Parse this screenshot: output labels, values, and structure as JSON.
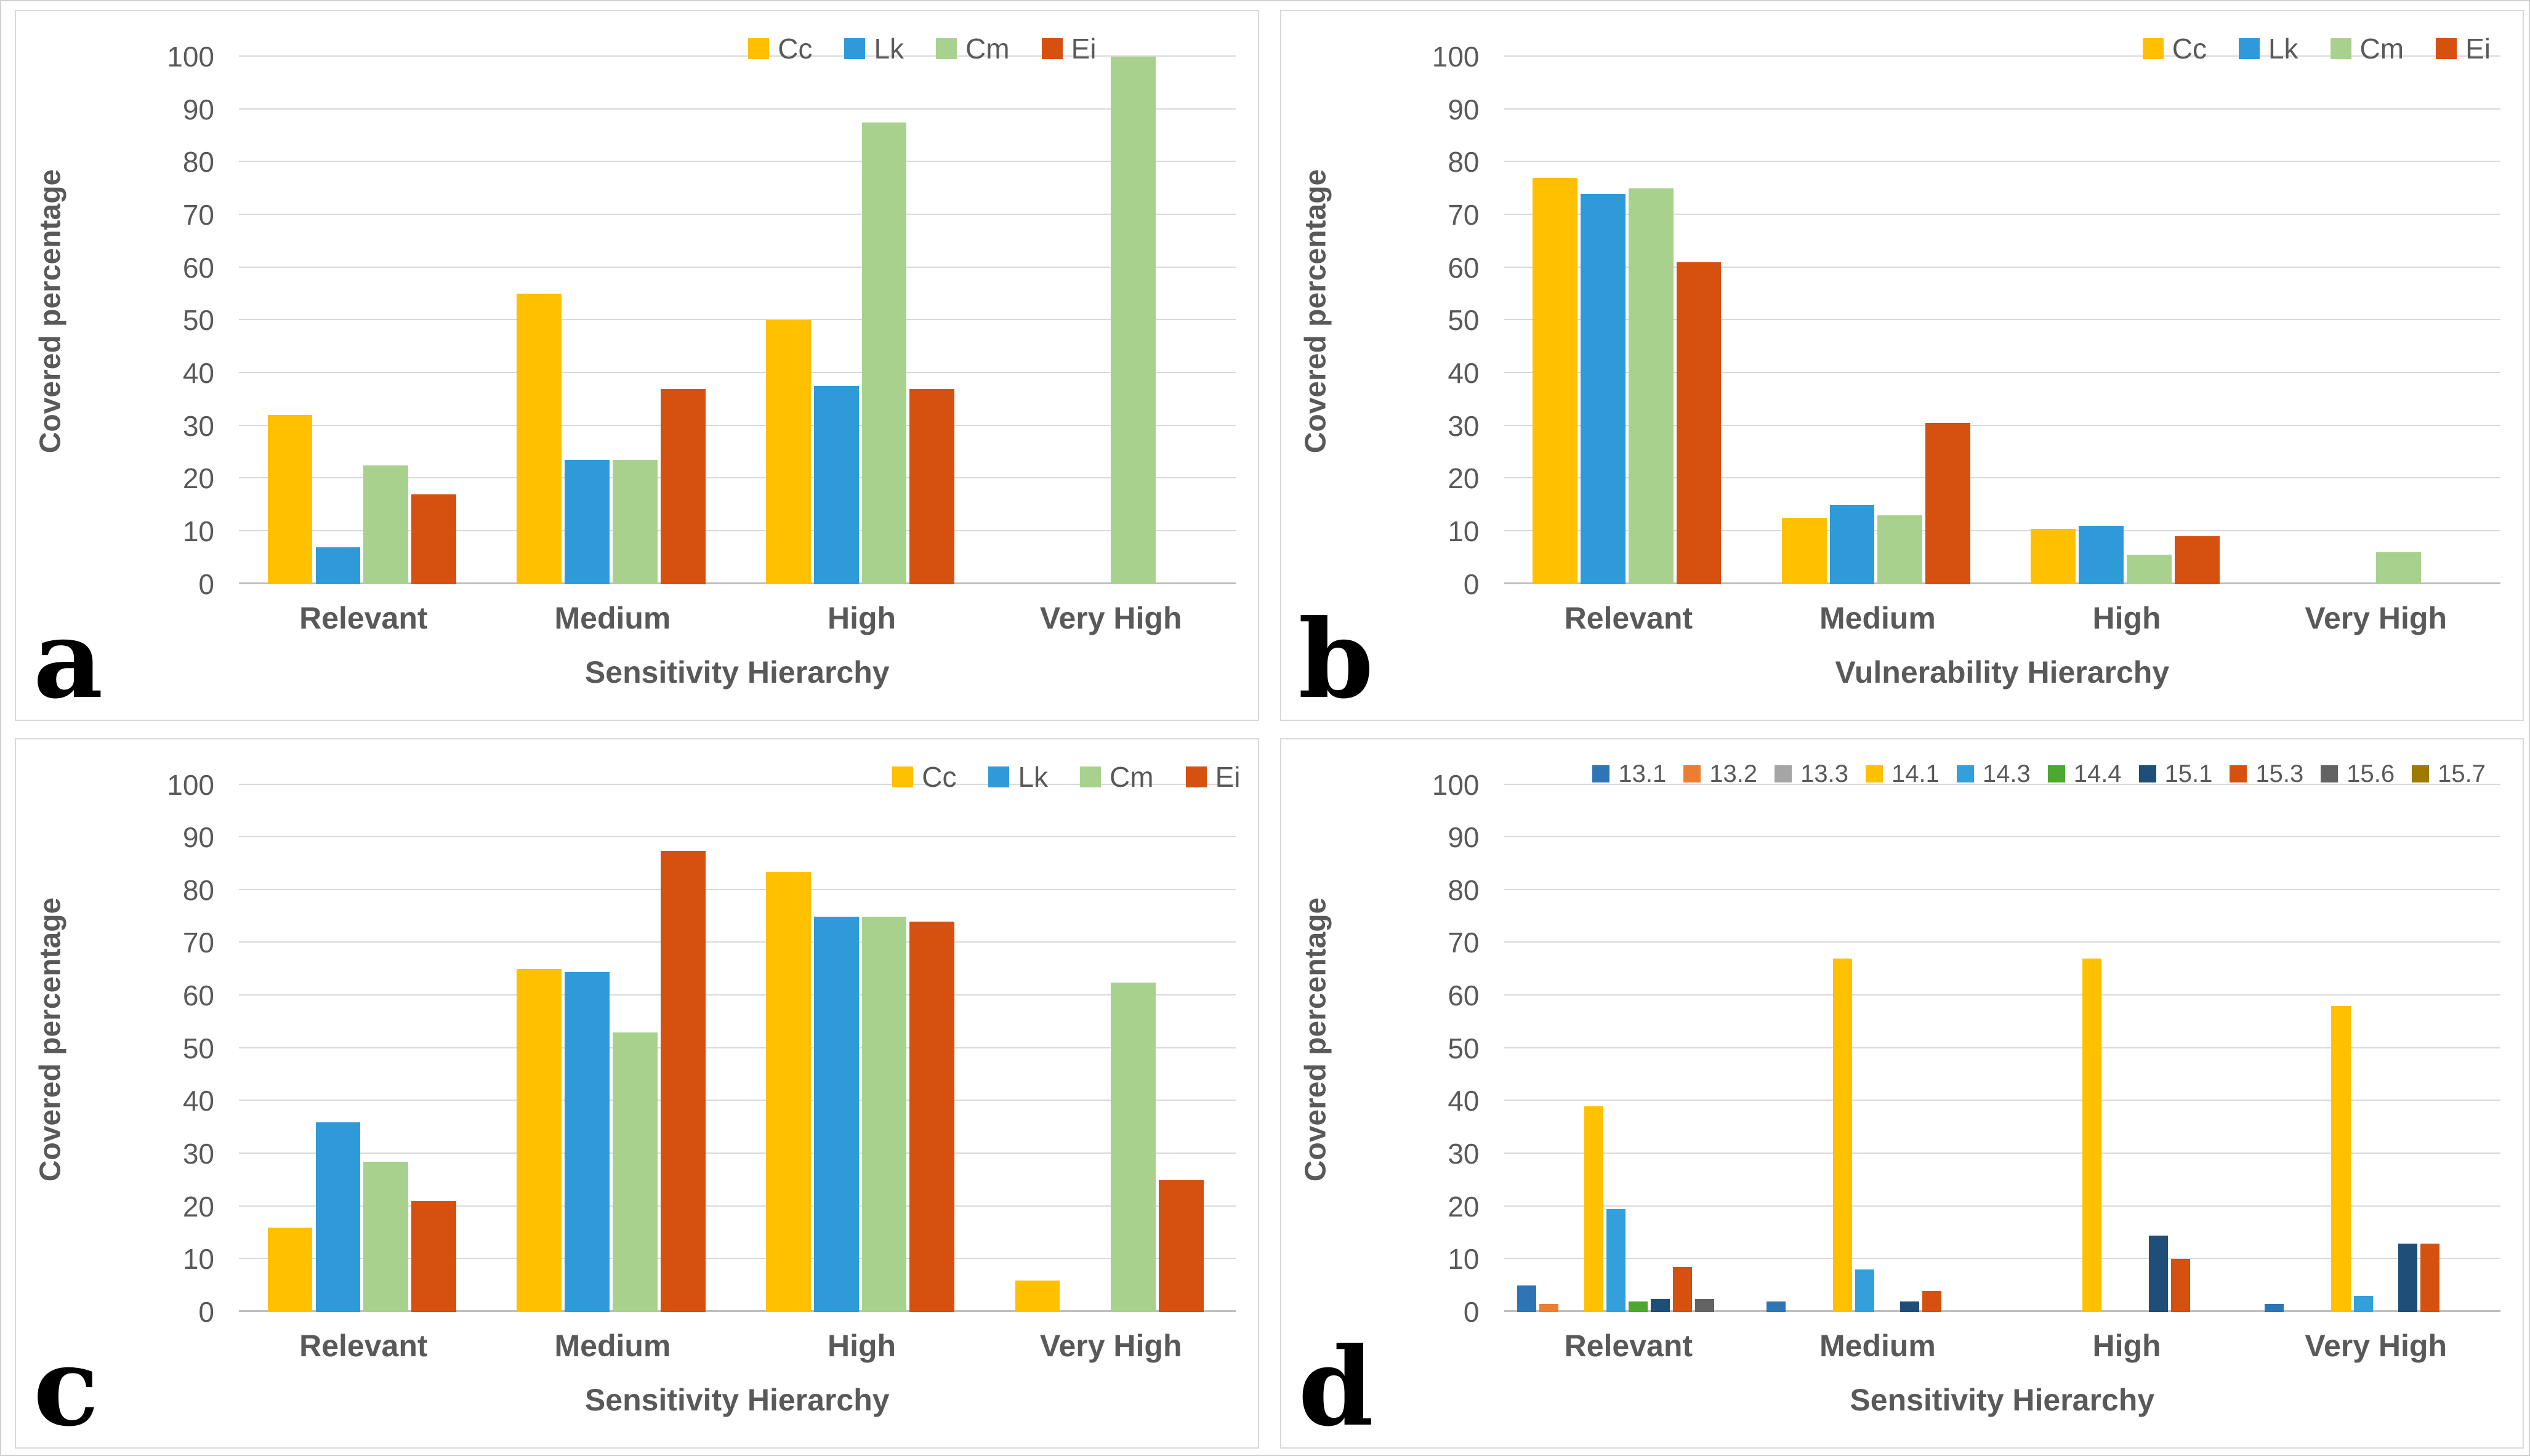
{
  "chart_data": [
    {
      "type": "bar",
      "letter": "a",
      "ylabel": "Covered percentage",
      "xlabel": "Sensitivity Hierarchy",
      "categories": [
        "Relevant",
        "Medium",
        "High",
        "Very High"
      ],
      "ylim": [
        0,
        100
      ],
      "yticks": [
        0,
        10,
        20,
        30,
        40,
        50,
        60,
        70,
        80,
        90,
        100
      ],
      "grid": true,
      "legend_position": "top-right",
      "series": [
        {
          "name": "Cc",
          "color": "#FFC000",
          "values": [
            32,
            55,
            50,
            0
          ]
        },
        {
          "name": "Lk",
          "color": "#2E9BD8",
          "values": [
            7,
            23.5,
            37.5,
            0
          ]
        },
        {
          "name": "Cm",
          "color": "#A9D18E",
          "values": [
            22.5,
            23.5,
            87.5,
            100
          ]
        },
        {
          "name": "Ei",
          "color": "#D6500F",
          "values": [
            17,
            37,
            37,
            0
          ]
        }
      ]
    },
    {
      "type": "bar",
      "letter": "b",
      "ylabel": "Covered percentage",
      "xlabel": "Vulnerability Hierarchy",
      "categories": [
        "Relevant",
        "Medium",
        "High",
        "Very High"
      ],
      "ylim": [
        0,
        100
      ],
      "yticks": [
        0,
        10,
        20,
        30,
        40,
        50,
        60,
        70,
        80,
        90,
        100
      ],
      "grid": true,
      "legend_position": "top-right",
      "series": [
        {
          "name": "Cc",
          "color": "#FFC000",
          "values": [
            77,
            12.5,
            10.5,
            0
          ]
        },
        {
          "name": "Lk",
          "color": "#2E9BD8",
          "values": [
            74,
            15,
            11,
            0
          ]
        },
        {
          "name": "Cm",
          "color": "#A9D18E",
          "values": [
            75,
            13,
            5.5,
            6
          ]
        },
        {
          "name": "Ei",
          "color": "#D6500F",
          "values": [
            61,
            30.5,
            9,
            0
          ]
        }
      ]
    },
    {
      "type": "bar",
      "letter": "c",
      "ylabel": "Covered percentage",
      "xlabel": "Sensitivity Hierarchy",
      "categories": [
        "Relevant",
        "Medium",
        "High",
        "Very High"
      ],
      "ylim": [
        0,
        100
      ],
      "yticks": [
        0,
        10,
        20,
        30,
        40,
        50,
        60,
        70,
        80,
        90,
        100
      ],
      "grid": true,
      "legend_position": "top-right",
      "series": [
        {
          "name": "Cc",
          "color": "#FFC000",
          "values": [
            16,
            65,
            83.5,
            6
          ]
        },
        {
          "name": "Lk",
          "color": "#2E9BD8",
          "values": [
            36,
            64.5,
            75,
            0
          ]
        },
        {
          "name": "Cm",
          "color": "#A9D18E",
          "values": [
            28.5,
            53,
            75,
            62.5
          ]
        },
        {
          "name": "Ei",
          "color": "#D6500F",
          "values": [
            21,
            87.5,
            74,
            25
          ]
        }
      ]
    },
    {
      "type": "bar",
      "letter": "d",
      "ylabel": "Covered percentage",
      "xlabel": "Sensitivity Hierarchy",
      "categories": [
        "Relevant",
        "Medium",
        "High",
        "Very High"
      ],
      "ylim": [
        0,
        100
      ],
      "yticks": [
        0,
        10,
        20,
        30,
        40,
        50,
        60,
        70,
        80,
        90,
        100
      ],
      "grid": true,
      "legend_position": "top-right",
      "series": [
        {
          "name": "13.1",
          "color": "#2E75B6",
          "values": [
            5,
            2,
            0,
            1.5
          ]
        },
        {
          "name": "13.2",
          "color": "#ED7D31",
          "values": [
            1.5,
            0,
            0,
            0
          ]
        },
        {
          "name": "13.3",
          "color": "#A5A5A5",
          "values": [
            0,
            0,
            0,
            0
          ]
        },
        {
          "name": "14.1",
          "color": "#FFC000",
          "values": [
            39,
            67,
            67,
            58
          ]
        },
        {
          "name": "14.3",
          "color": "#33A0DC",
          "values": [
            19.5,
            8,
            0,
            3
          ]
        },
        {
          "name": "14.4",
          "color": "#4EA72E",
          "values": [
            2,
            0,
            0,
            0
          ]
        },
        {
          "name": "15.1",
          "color": "#1F4E79",
          "values": [
            2.5,
            2,
            14.5,
            13
          ]
        },
        {
          "name": "15.3",
          "color": "#D6500F",
          "values": [
            8.5,
            4,
            10,
            13
          ]
        },
        {
          "name": "15.6",
          "color": "#636363",
          "values": [
            2.5,
            0,
            0,
            0
          ]
        },
        {
          "name": "15.7",
          "color": "#9E7B00",
          "values": [
            0,
            0,
            0,
            0
          ]
        }
      ]
    }
  ]
}
